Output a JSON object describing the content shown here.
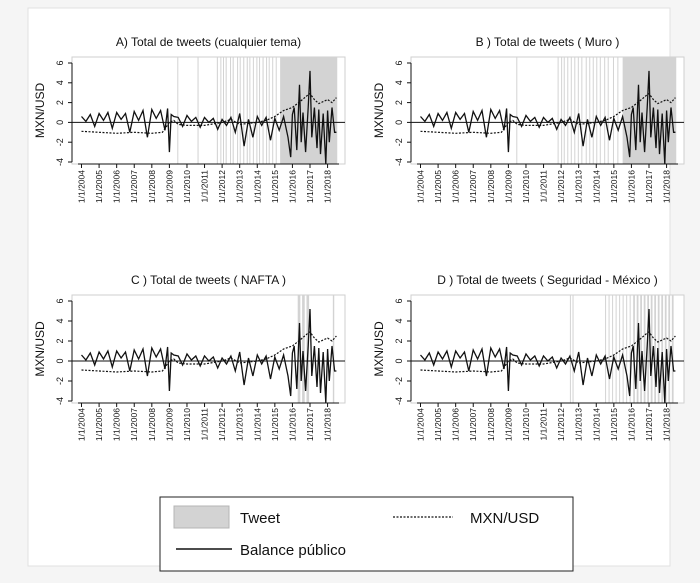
{
  "chart_data": [
    {
      "type": "line",
      "title": "A) Total de tweets (cualquier tema)",
      "ylabel": "MXN/USD",
      "ylim": [
        -4,
        6
      ],
      "yticks": [
        -4,
        -2,
        0,
        2,
        4,
        6
      ],
      "x_ticks": [
        "1/1/2004",
        "1/1/2005",
        "1/1/2006",
        "1/1/2007",
        "1/1/2008",
        "1/1/2009",
        "1/1/2010",
        "1/1/2011",
        "1/1/2012",
        "1/1/2013",
        "1/1/2014",
        "1/1/2015",
        "1/1/2016",
        "1/1/2017",
        "1/1/2018"
      ],
      "tweet_periods": [
        [
          2009.45,
          2009.5
        ],
        [
          2010.6,
          2010.66
        ],
        [
          2011.7,
          2011.76
        ],
        [
          2011.9,
          2011.95
        ],
        [
          2012.05,
          2012.1
        ],
        [
          2012.2,
          2012.26
        ],
        [
          2012.45,
          2012.5
        ],
        [
          2012.6,
          2012.66
        ],
        [
          2012.85,
          2012.9
        ],
        [
          2013.0,
          2013.05
        ],
        [
          2013.2,
          2013.26
        ],
        [
          2013.4,
          2013.46
        ],
        [
          2013.55,
          2013.6
        ],
        [
          2013.75,
          2013.8
        ],
        [
          2013.95,
          2014.0
        ],
        [
          2014.1,
          2014.16
        ],
        [
          2014.3,
          2014.36
        ],
        [
          2014.5,
          2014.55
        ],
        [
          2014.65,
          2014.7
        ],
        [
          2014.85,
          2014.9
        ],
        [
          2015.05,
          2015.1
        ],
        [
          2015.3,
          2018.55
        ]
      ]
    },
    {
      "type": "line",
      "title": "B ) Total de tweets ( Muro )",
      "ylabel": "MXN/USD",
      "ylim": [
        -4,
        6
      ],
      "yticks": [
        -4,
        -2,
        0,
        2,
        4,
        6
      ],
      "x_ticks": [
        "1/1/2004",
        "1/1/2005",
        "1/1/2006",
        "1/1/2007",
        "1/1/2008",
        "1/1/2009",
        "1/1/2010",
        "1/1/2011",
        "1/1/2012",
        "1/1/2013",
        "1/1/2014",
        "1/1/2015",
        "1/1/2016",
        "1/1/2017",
        "1/1/2018"
      ],
      "tweet_periods": [
        [
          2009.45,
          2009.5
        ],
        [
          2011.8,
          2011.85
        ],
        [
          2012.0,
          2012.05
        ],
        [
          2012.15,
          2012.2
        ],
        [
          2012.35,
          2012.4
        ],
        [
          2012.55,
          2012.6
        ],
        [
          2012.75,
          2012.8
        ],
        [
          2012.95,
          2013.0
        ],
        [
          2013.15,
          2013.2
        ],
        [
          2013.4,
          2013.45
        ],
        [
          2013.6,
          2013.65
        ],
        [
          2013.8,
          2013.85
        ],
        [
          2014.0,
          2014.05
        ],
        [
          2014.2,
          2014.25
        ],
        [
          2014.45,
          2014.5
        ],
        [
          2014.65,
          2014.7
        ],
        [
          2014.95,
          2015.0
        ],
        [
          2015.2,
          2015.25
        ],
        [
          2015.5,
          2018.55
        ]
      ]
    },
    {
      "type": "line",
      "title": "C ) Total de tweets ( NAFTA )",
      "ylabel": "MXN/USD",
      "ylim": [
        -4,
        6
      ],
      "yticks": [
        -4,
        -2,
        0,
        2,
        4,
        6
      ],
      "x_ticks": [
        "1/1/2004",
        "1/1/2005",
        "1/1/2006",
        "1/1/2007",
        "1/1/2008",
        "1/1/2009",
        "1/1/2010",
        "1/1/2011",
        "1/1/2012",
        "1/1/2013",
        "1/1/2014",
        "1/1/2015",
        "1/1/2016",
        "1/1/2017",
        "1/1/2018"
      ],
      "tweet_periods": [
        [
          2016.3,
          2016.45
        ],
        [
          2016.55,
          2016.7
        ],
        [
          2016.8,
          2016.95
        ],
        [
          2018.3,
          2018.38
        ]
      ]
    },
    {
      "type": "line",
      "title": "D ) Total de tweets ( Seguridad - México )",
      "ylabel": "MXN/USD",
      "ylim": [
        -4,
        6
      ],
      "yticks": [
        -4,
        -2,
        0,
        2,
        4,
        6
      ],
      "x_ticks": [
        "1/1/2004",
        "1/1/2005",
        "1/1/2006",
        "1/1/2007",
        "1/1/2008",
        "1/1/2009",
        "1/1/2010",
        "1/1/2011",
        "1/1/2012",
        "1/1/2013",
        "1/1/2014",
        "1/1/2015",
        "1/1/2016",
        "1/1/2017",
        "1/1/2018"
      ],
      "tweet_periods": [
        [
          2012.5,
          2012.55
        ],
        [
          2012.65,
          2012.7
        ],
        [
          2014.5,
          2014.55
        ],
        [
          2014.7,
          2014.75
        ],
        [
          2014.9,
          2014.95
        ],
        [
          2015.1,
          2015.15
        ],
        [
          2015.3,
          2015.35
        ],
        [
          2015.5,
          2015.55
        ],
        [
          2015.7,
          2015.75
        ],
        [
          2015.9,
          2015.95
        ],
        [
          2016.1,
          2016.2
        ],
        [
          2016.3,
          2016.4
        ],
        [
          2016.5,
          2016.6
        ],
        [
          2016.7,
          2016.8
        ],
        [
          2016.9,
          2017.0
        ],
        [
          2017.1,
          2017.2
        ],
        [
          2017.3,
          2017.4
        ],
        [
          2017.5,
          2017.6
        ],
        [
          2017.7,
          2017.8
        ],
        [
          2017.9,
          2018.0
        ],
        [
          2018.1,
          2018.2
        ],
        [
          2018.3,
          2018.4
        ]
      ]
    }
  ],
  "series": {
    "balance": {
      "name": "Balance público",
      "x": [
        2004.0,
        2004.25,
        2004.5,
        2004.75,
        2005.0,
        2005.25,
        2005.5,
        2005.75,
        2006.0,
        2006.25,
        2006.5,
        2006.75,
        2007.0,
        2007.25,
        2007.5,
        2007.75,
        2008.0,
        2008.25,
        2008.5,
        2008.75,
        2008.9,
        2009.0,
        2009.1,
        2009.25,
        2009.5,
        2009.75,
        2010.0,
        2010.25,
        2010.5,
        2010.75,
        2011.0,
        2011.25,
        2011.5,
        2011.75,
        2012.0,
        2012.25,
        2012.5,
        2012.75,
        2013.0,
        2013.25,
        2013.5,
        2013.75,
        2014.0,
        2014.25,
        2014.5,
        2014.75,
        2015.0,
        2015.25,
        2015.5,
        2015.75,
        2015.9,
        2016.0,
        2016.1,
        2016.25,
        2016.4,
        2016.5,
        2016.6,
        2016.75,
        2016.9,
        2017.0,
        2017.1,
        2017.25,
        2017.4,
        2017.5,
        2017.6,
        2017.75,
        2017.9,
        2018.0,
        2018.1,
        2018.25,
        2018.4,
        2018.5
      ],
      "y": [
        0.6,
        0.1,
        0.8,
        -0.4,
        0.9,
        0.2,
        1.0,
        -0.6,
        1.0,
        0.3,
        0.9,
        -1.0,
        1.1,
        0.2,
        1.2,
        -1.5,
        1.3,
        0.4,
        1.2,
        -0.8,
        1.4,
        -3.0,
        0.8,
        0.6,
        0.5,
        -0.4,
        0.7,
        0.1,
        0.5,
        -0.5,
        0.5,
        0.0,
        0.4,
        -0.7,
        0.3,
        -0.3,
        0.5,
        -1.0,
        0.9,
        -2.4,
        0.3,
        -1.5,
        0.6,
        -0.3,
        0.5,
        -1.8,
        0.4,
        -0.8,
        0.6,
        -1.5,
        -3.5,
        0.8,
        1.5,
        -2.8,
        3.8,
        -2.0,
        1.0,
        -3.0,
        1.5,
        5.2,
        -1.5,
        1.5,
        -2.6,
        1.3,
        -3.2,
        0.9,
        -4.2,
        1.2,
        -2.0,
        1.5,
        -1.0,
        -1.0
      ]
    },
    "mxn": {
      "name": "MXN/USD",
      "x": [
        2004.0,
        2005.0,
        2006.0,
        2007.0,
        2008.0,
        2008.6,
        2009.0,
        2009.25,
        2009.5,
        2010.0,
        2011.0,
        2012.0,
        2012.5,
        2013.0,
        2014.0,
        2014.5,
        2015.0,
        2015.5,
        2016.0,
        2016.5,
        2016.9,
        2017.0,
        2017.25,
        2017.5,
        2017.75,
        2018.0,
        2018.25,
        2018.5
      ],
      "y": [
        -0.9,
        -1.0,
        -1.1,
        -1.0,
        -1.1,
        -1.0,
        0.0,
        0.2,
        -0.2,
        -0.3,
        -0.3,
        0.0,
        0.3,
        -0.2,
        0.0,
        0.2,
        0.6,
        1.2,
        1.5,
        2.2,
        2.8,
        2.9,
        2.3,
        1.9,
        2.1,
        2.3,
        2.0,
        2.5
      ]
    }
  },
  "legend": {
    "tweet": "Tweet",
    "mxn": "MXN/USD",
    "balance": "Balance público"
  }
}
